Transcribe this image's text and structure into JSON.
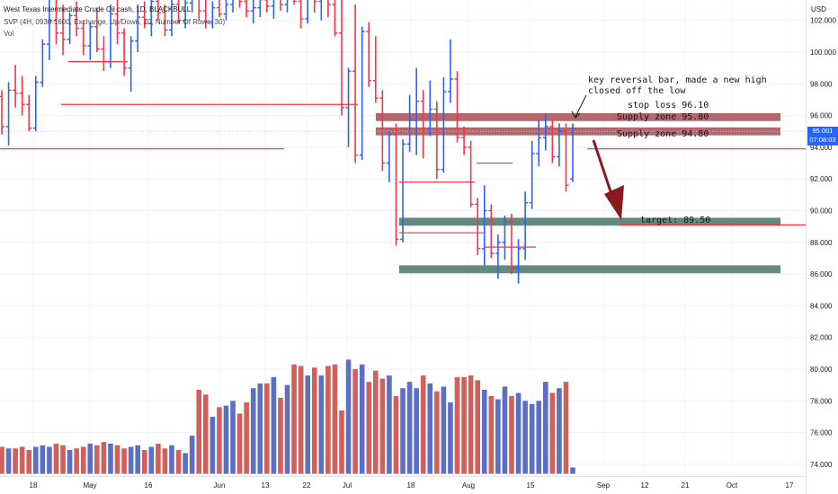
{
  "header": {
    "title": "West Texas Intermediate Crude Oil cash, 1D, BLACKBULL",
    "indicator": "SVP (4H, 0930-1600, Exchange, Up/Down, 70, Number Of Rows, 30)",
    "volume_label": "Vol"
  },
  "price_axis": {
    "unit": "USD",
    "ticks": [
      "102.000",
      "100.000",
      "98.000",
      "96.000",
      "94.000",
      "92.000",
      "90.000",
      "88.000",
      "86.000",
      "84.000",
      "82.000",
      "80.000",
      "78.000",
      "76.000",
      "74.000"
    ],
    "last_price": "95.001",
    "countdown": "07:08:03"
  },
  "time_axis": {
    "labels": [
      "18",
      "May",
      "16",
      "Jun",
      "13",
      "22",
      "Jul",
      "18",
      "Aug",
      "15",
      "Sep",
      "12",
      "21",
      "Oct",
      "17"
    ]
  },
  "annotations": {
    "key_reversal_line1": "key reversal bar, made a new high",
    "key_reversal_line2": "closed off the low",
    "stop_loss": "stop loss 96.10",
    "supply_zone_1": "Supply zone 95.80",
    "supply_zone_2": "Supply zone 94.80",
    "target": "target: 89.50"
  },
  "colors": {
    "up": "#2962ff",
    "down": "#f23645",
    "up_volume": "#5b6fc4",
    "down_volume": "#d0605c",
    "supply_zone": "#a84d52",
    "demand_zone": "#4a7468",
    "arrow": "#8b1a1f",
    "last_price_badge": "#2962ff"
  },
  "chart_data": {
    "type": "ohlc",
    "y_range": [
      73,
      104
    ],
    "zones": [
      {
        "label": "Supply zone 95.80",
        "low": 95.65,
        "high": 96.15,
        "color": "supply"
      },
      {
        "label": "Supply zone 94.80",
        "low": 94.75,
        "high": 95.25,
        "color": "supply"
      },
      {
        "label": "target: 89.50",
        "low": 89.05,
        "high": 89.55,
        "color": "demand"
      },
      {
        "label": "",
        "low": 86.05,
        "high": 86.55,
        "color": "demand"
      }
    ],
    "bars": [
      {
        "o": 97.2,
        "h": 97.6,
        "l": 94.8,
        "c": 95.3,
        "v": 75.1
      },
      {
        "o": 95.3,
        "h": 98.1,
        "l": 94.1,
        "c": 97.6,
        "v": 75.0
      },
      {
        "o": 97.6,
        "h": 99.2,
        "l": 96.5,
        "c": 97.4,
        "v": 75.0
      },
      {
        "o": 97.4,
        "h": 98.5,
        "l": 96.0,
        "c": 96.7,
        "v": 75.1
      },
      {
        "o": 96.7,
        "h": 97.3,
        "l": 95.0,
        "c": 95.2,
        "v": 74.9
      },
      {
        "o": 95.2,
        "h": 98.5,
        "l": 95.0,
        "c": 98.1,
        "v": 75.1
      },
      {
        "o": 98.1,
        "h": 100.8,
        "l": 97.8,
        "c": 100.5,
        "v": 75.2
      },
      {
        "o": 100.5,
        "h": 103.5,
        "l": 99.5,
        "c": 102.0,
        "v": 75.1
      },
      {
        "o": 102.0,
        "h": 104.0,
        "l": 100.5,
        "c": 101.2,
        "v": 75.3
      },
      {
        "o": 101.2,
        "h": 103.0,
        "l": 99.8,
        "c": 100.8,
        "v": 75.2
      },
      {
        "o": 100.8,
        "h": 102.5,
        "l": 100.5,
        "c": 102.3,
        "v": 74.9
      },
      {
        "o": 102.3,
        "h": 103.2,
        "l": 101.0,
        "c": 101.5,
        "v": 75.0
      },
      {
        "o": 101.5,
        "h": 102.0,
        "l": 99.8,
        "c": 100.4,
        "v": 75.1
      },
      {
        "o": 100.4,
        "h": 101.8,
        "l": 99.5,
        "c": 101.6,
        "v": 75.3
      },
      {
        "o": 101.6,
        "h": 102.8,
        "l": 100.0,
        "c": 100.2,
        "v": 75.2
      },
      {
        "o": 100.2,
        "h": 101.0,
        "l": 98.8,
        "c": 99.4,
        "v": 75.4
      },
      {
        "o": 99.4,
        "h": 103.0,
        "l": 99.0,
        "c": 102.4,
        "v": 75.3
      },
      {
        "o": 102.4,
        "h": 103.5,
        "l": 100.5,
        "c": 101.2,
        "v": 75.2
      },
      {
        "o": 101.2,
        "h": 101.5,
        "l": 98.5,
        "c": 99.0,
        "v": 75.0
      },
      {
        "o": 99.0,
        "h": 101.0,
        "l": 97.5,
        "c": 100.7,
        "v": 75.1
      },
      {
        "o": 100.7,
        "h": 103.0,
        "l": 100.0,
        "c": 102.2,
        "v": 75.2
      },
      {
        "o": 102.2,
        "h": 103.2,
        "l": 101.5,
        "c": 101.8,
        "v": 74.9
      },
      {
        "o": 101.8,
        "h": 103.5,
        "l": 101.0,
        "c": 103.2,
        "v": 75.1
      },
      {
        "o": 103.2,
        "h": 103.8,
        "l": 102.0,
        "c": 102.5,
        "v": 75.3
      },
      {
        "o": 102.5,
        "h": 103.0,
        "l": 101.0,
        "c": 101.4,
        "v": 75.0
      },
      {
        "o": 101.4,
        "h": 103.5,
        "l": 101.0,
        "c": 103.0,
        "v": 75.2
      },
      {
        "o": 103.0,
        "h": 103.8,
        "l": 101.8,
        "c": 102.0,
        "v": 74.9
      },
      {
        "o": 102.0,
        "h": 103.5,
        "l": 101.5,
        "c": 103.1,
        "v": 74.7
      },
      {
        "o": 103.1,
        "h": 103.9,
        "l": 102.5,
        "c": 103.5,
        "v": 75.8
      },
      {
        "o": 103.5,
        "h": 103.9,
        "l": 102.0,
        "c": 102.6,
        "v": 78.7
      },
      {
        "o": 102.6,
        "h": 103.5,
        "l": 101.5,
        "c": 101.9,
        "v": 78.4
      },
      {
        "o": 101.9,
        "h": 103.2,
        "l": 101.5,
        "c": 102.8,
        "v": 77.0
      },
      {
        "o": 102.8,
        "h": 103.7,
        "l": 102.2,
        "c": 102.4,
        "v": 77.6
      },
      {
        "o": 102.4,
        "h": 103.4,
        "l": 102.0,
        "c": 103.0,
        "v": 77.7
      },
      {
        "o": 103.0,
        "h": 103.8,
        "l": 102.5,
        "c": 103.6,
        "v": 78.0
      },
      {
        "o": 103.6,
        "h": 103.9,
        "l": 102.8,
        "c": 103.2,
        "v": 77.2
      },
      {
        "o": 103.2,
        "h": 103.8,
        "l": 102.2,
        "c": 102.6,
        "v": 77.9
      },
      {
        "o": 102.6,
        "h": 103.3,
        "l": 101.8,
        "c": 102.8,
        "v": 78.8
      },
      {
        "o": 102.8,
        "h": 103.6,
        "l": 102.2,
        "c": 103.3,
        "v": 79.1
      },
      {
        "o": 103.3,
        "h": 103.9,
        "l": 102.5,
        "c": 102.9,
        "v": 79.1
      },
      {
        "o": 102.9,
        "h": 103.7,
        "l": 102.1,
        "c": 103.4,
        "v": 79.5
      },
      {
        "o": 103.4,
        "h": 103.9,
        "l": 102.6,
        "c": 103.0,
        "v": 78.2
      },
      {
        "o": 103.0,
        "h": 103.8,
        "l": 102.5,
        "c": 103.6,
        "v": 79.0
      },
      {
        "o": 103.6,
        "h": 103.9,
        "l": 103.0,
        "c": 103.2,
        "v": 80.3
      },
      {
        "o": 103.2,
        "h": 103.9,
        "l": 101.5,
        "c": 102.1,
        "v": 80.2
      },
      {
        "o": 102.1,
        "h": 103.9,
        "l": 101.8,
        "c": 103.6,
        "v": 79.6
      },
      {
        "o": 103.6,
        "h": 103.9,
        "l": 102.5,
        "c": 103.2,
        "v": 80.1
      },
      {
        "o": 103.2,
        "h": 103.9,
        "l": 102.0,
        "c": 103.5,
        "v": 79.6
      },
      {
        "o": 103.5,
        "h": 103.9,
        "l": 102.2,
        "c": 103.0,
        "v": 80.2
      },
      {
        "o": 103.0,
        "h": 103.9,
        "l": 101.0,
        "c": 101.2,
        "v": 80.3
      },
      {
        "o": 101.2,
        "h": 103.9,
        "l": 96.0,
        "c": 96.5,
        "v": 77.4
      },
      {
        "o": 96.5,
        "h": 99.0,
        "l": 94.0,
        "c": 98.8,
        "v": 80.6
      },
      {
        "o": 98.8,
        "h": 103.0,
        "l": 93.0,
        "c": 93.5,
        "v": 80.0
      },
      {
        "o": 93.5,
        "h": 101.6,
        "l": 93.2,
        "c": 101.3,
        "v": 80.3
      },
      {
        "o": 101.3,
        "h": 101.9,
        "l": 97.8,
        "c": 98.2,
        "v": 79.2
      },
      {
        "o": 98.2,
        "h": 101.0,
        "l": 96.8,
        "c": 97.1,
        "v": 79.9
      },
      {
        "o": 97.1,
        "h": 97.6,
        "l": 92.5,
        "c": 93.0,
        "v": 79.4
      },
      {
        "o": 93.0,
        "h": 95.0,
        "l": 91.8,
        "c": 94.8,
        "v": 79.6
      },
      {
        "o": 94.8,
        "h": 95.5,
        "l": 87.8,
        "c": 88.2,
        "v": 78.3
      },
      {
        "o": 88.2,
        "h": 94.5,
        "l": 88.0,
        "c": 94.2,
        "v": 78.8
      },
      {
        "o": 94.2,
        "h": 97.3,
        "l": 93.7,
        "c": 95.7,
        "v": 79.2
      },
      {
        "o": 95.7,
        "h": 99.0,
        "l": 93.5,
        "c": 96.9,
        "v": 78.8
      },
      {
        "o": 96.9,
        "h": 97.6,
        "l": 93.3,
        "c": 95.2,
        "v": 79.6
      },
      {
        "o": 95.2,
        "h": 98.2,
        "l": 94.7,
        "c": 96.4,
        "v": 79.1
      },
      {
        "o": 96.4,
        "h": 96.9,
        "l": 92.0,
        "c": 92.6,
        "v": 78.6
      },
      {
        "o": 92.6,
        "h": 98.4,
        "l": 92.4,
        "c": 97.5,
        "v": 78.9
      },
      {
        "o": 97.5,
        "h": 100.8,
        "l": 96.8,
        "c": 98.3,
        "v": 77.9
      },
      {
        "o": 98.3,
        "h": 98.8,
        "l": 94.3,
        "c": 94.6,
        "v": 79.5
      },
      {
        "o": 94.6,
        "h": 95.3,
        "l": 93.5,
        "c": 94.0,
        "v": 79.5
      },
      {
        "o": 94.0,
        "h": 94.4,
        "l": 90.2,
        "c": 90.4,
        "v": 79.6
      },
      {
        "o": 90.4,
        "h": 90.8,
        "l": 87.2,
        "c": 87.6,
        "v": 79.3
      },
      {
        "o": 87.6,
        "h": 91.6,
        "l": 86.5,
        "c": 90.0,
        "v": 78.7
      },
      {
        "o": 90.0,
        "h": 90.4,
        "l": 87.0,
        "c": 87.3,
        "v": 78.3
      },
      {
        "o": 87.3,
        "h": 88.5,
        "l": 85.7,
        "c": 88.0,
        "v": 78.1
      },
      {
        "o": 88.0,
        "h": 89.7,
        "l": 86.9,
        "c": 89.3,
        "v": 78.9
      },
      {
        "o": 89.3,
        "h": 89.8,
        "l": 86.0,
        "c": 86.4,
        "v": 78.3
      },
      {
        "o": 86.4,
        "h": 88.2,
        "l": 85.4,
        "c": 87.6,
        "v": 78.5
      },
      {
        "o": 87.6,
        "h": 91.2,
        "l": 86.9,
        "c": 90.5,
        "v": 78.0
      },
      {
        "o": 90.5,
        "h": 94.4,
        "l": 90.1,
        "c": 93.6,
        "v": 77.8
      },
      {
        "o": 93.6,
        "h": 95.8,
        "l": 92.8,
        "c": 94.6,
        "v": 78.0
      },
      {
        "o": 94.6,
        "h": 96.1,
        "l": 93.8,
        "c": 95.3,
        "v": 79.2
      },
      {
        "o": 95.3,
        "h": 95.8,
        "l": 93.0,
        "c": 93.4,
        "v": 78.5
      },
      {
        "o": 93.4,
        "h": 95.5,
        "l": 92.8,
        "c": 95.0,
        "v": 78.8
      },
      {
        "o": 95.0,
        "h": 95.5,
        "l": 91.2,
        "c": 91.6,
        "v": 79.2
      },
      {
        "o": 92.0,
        "h": 95.5,
        "l": 91.8,
        "c": 95.2,
        "v": 73.8
      }
    ]
  }
}
